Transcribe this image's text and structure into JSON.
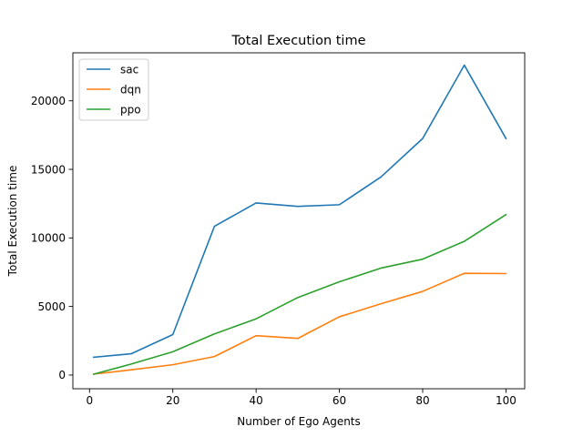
{
  "chart_data": {
    "type": "line",
    "title": "Total Execution time",
    "xlabel": "Number of Ego Agents",
    "ylabel": "Total Execution time",
    "xlim": [
      -4,
      104.5
    ],
    "ylim": [
      -1000,
      23500
    ],
    "xticks": [
      0,
      20,
      40,
      60,
      80,
      100
    ],
    "yticks": [
      0,
      5000,
      10000,
      15000,
      20000
    ],
    "grid": false,
    "legend_position": "top-left",
    "x": [
      1,
      10,
      20,
      30,
      40,
      50,
      60,
      70,
      80,
      90,
      100
    ],
    "series": [
      {
        "name": "sac",
        "color": "#1f77b4",
        "values": [
          1300,
          1550,
          2950,
          10850,
          12550,
          12300,
          12420,
          14450,
          17250,
          22600,
          17250
        ]
      },
      {
        "name": "dqn",
        "color": "#ff7f0e",
        "values": [
          70,
          380,
          750,
          1350,
          2870,
          2670,
          4250,
          5200,
          6100,
          7420,
          7400
        ]
      },
      {
        "name": "ppo",
        "color": "#2ca02c",
        "values": [
          60,
          800,
          1700,
          3000,
          4100,
          5650,
          6800,
          7800,
          8450,
          9750,
          11700
        ]
      }
    ]
  }
}
